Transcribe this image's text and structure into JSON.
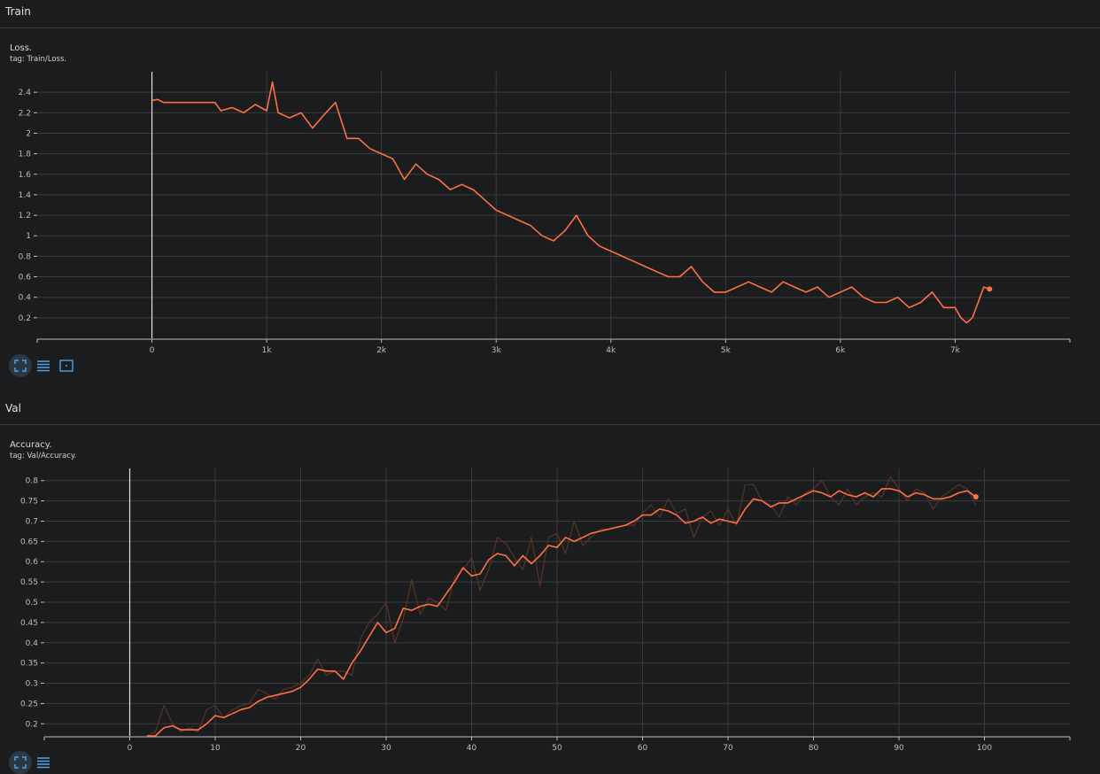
{
  "sections": [
    {
      "title": "Train"
    },
    {
      "title": "Val"
    }
  ],
  "cards": [
    {
      "title": "Loss.",
      "tag": "tag: Train/Loss."
    },
    {
      "title": "Accuracy.",
      "tag": "tag: Val/Accuracy."
    }
  ],
  "toolbar_icons": [
    "fit-domain-icon",
    "toggle-log-scale-icon",
    "expand-chart-icon"
  ],
  "colors": {
    "background": "#1b1c1e",
    "grid": "#3a3b3e",
    "smoothed": "#ff7043",
    "raw": "#5a3322",
    "axis": "#bdbdbd"
  },
  "chart_data": [
    {
      "type": "line",
      "title": "Loss.",
      "xlabel": "",
      "ylabel": "",
      "xlim": [
        -1000,
        8000
      ],
      "ylim": [
        0.0,
        2.6
      ],
      "x_ticks": [
        0,
        1000,
        2000,
        3000,
        4000,
        5000,
        6000,
        7000
      ],
      "x_tick_labels": [
        "0",
        "1k",
        "2k",
        "3k",
        "4k",
        "5k",
        "6k",
        "7k"
      ],
      "y_ticks": [
        0.2,
        0.4,
        0.6,
        0.8,
        1.0,
        1.2,
        1.4,
        1.6,
        1.8,
        2.0,
        2.2,
        2.4
      ],
      "y_tick_labels": [
        "0.2",
        "0.4",
        "0.6",
        "0.8",
        "1",
        "1.2",
        "1.4",
        "1.6",
        "1.8",
        "2",
        "2.2",
        "2.4"
      ],
      "grid": true,
      "series": [
        {
          "role": "smoothed",
          "x": [
            0,
            50,
            100,
            300,
            550,
            600,
            700,
            800,
            900,
            1000,
            1050,
            1100,
            1200,
            1300,
            1400,
            1500,
            1600,
            1700,
            1800,
            1900,
            2000,
            2100,
            2200,
            2300,
            2400,
            2500,
            2600,
            2700,
            2800,
            2900,
            3000,
            3100,
            3200,
            3300,
            3400,
            3500,
            3600,
            3700,
            3800,
            3900,
            4000,
            4100,
            4200,
            4300,
            4400,
            4500,
            4600,
            4700,
            4800,
            4900,
            5000,
            5100,
            5200,
            5300,
            5400,
            5500,
            5600,
            5700,
            5800,
            5900,
            6000,
            6100,
            6200,
            6300,
            6400,
            6500,
            6600,
            6700,
            6800,
            6900,
            7000,
            7050,
            7100,
            7150,
            7200,
            7250,
            7300
          ],
          "y": [
            2.32,
            2.33,
            2.3,
            2.3,
            2.3,
            2.22,
            2.25,
            2.2,
            2.28,
            2.22,
            2.5,
            2.2,
            2.15,
            2.2,
            2.05,
            2.18,
            2.3,
            1.95,
            1.95,
            1.85,
            1.8,
            1.75,
            1.55,
            1.7,
            1.6,
            1.55,
            1.45,
            1.5,
            1.45,
            1.35,
            1.25,
            1.2,
            1.15,
            1.1,
            1.0,
            0.95,
            1.05,
            1.2,
            1.0,
            0.9,
            0.85,
            0.8,
            0.75,
            0.7,
            0.65,
            0.6,
            0.6,
            0.7,
            0.55,
            0.45,
            0.45,
            0.5,
            0.55,
            0.5,
            0.45,
            0.55,
            0.5,
            0.45,
            0.5,
            0.4,
            0.45,
            0.5,
            0.4,
            0.35,
            0.35,
            0.4,
            0.3,
            0.35,
            0.45,
            0.3,
            0.3,
            0.2,
            0.15,
            0.2,
            0.35,
            0.5,
            0.48
          ]
        }
      ]
    },
    {
      "type": "line",
      "title": "Accuracy.",
      "xlabel": "",
      "ylabel": "",
      "xlim": [
        -10,
        110
      ],
      "ylim": [
        0.17,
        0.83
      ],
      "x_ticks": [
        0,
        10,
        20,
        30,
        40,
        50,
        60,
        70,
        80,
        90,
        100
      ],
      "x_tick_labels": [
        "0",
        "10",
        "20",
        "30",
        "40",
        "50",
        "60",
        "70",
        "80",
        "90",
        "100"
      ],
      "y_ticks": [
        0.2,
        0.25,
        0.3,
        0.35,
        0.4,
        0.45,
        0.5,
        0.55,
        0.6,
        0.65,
        0.7,
        0.75,
        0.8
      ],
      "y_tick_labels": [
        "0.2",
        "0.25",
        "0.3",
        "0.35",
        "0.4",
        "0.45",
        "0.5",
        "0.55",
        "0.6",
        "0.65",
        "0.7",
        "0.75",
        "0.8"
      ],
      "grid": true,
      "series": [
        {
          "role": "raw",
          "x": [
            2,
            3,
            4,
            5,
            6,
            7,
            8,
            9,
            10,
            11,
            12,
            13,
            14,
            15,
            16,
            17,
            18,
            19,
            20,
            21,
            22,
            23,
            24,
            25,
            26,
            27,
            28,
            29,
            30,
            31,
            32,
            33,
            34,
            35,
            36,
            37,
            38,
            39,
            40,
            41,
            42,
            43,
            44,
            45,
            46,
            47,
            48,
            49,
            50,
            51,
            52,
            53,
            54,
            55,
            56,
            57,
            58,
            59,
            60,
            61,
            62,
            63,
            64,
            65,
            66,
            67,
            68,
            69,
            70,
            71,
            72,
            73,
            74,
            75,
            76,
            77,
            78,
            79,
            80,
            81,
            82,
            83,
            84,
            85,
            86,
            87,
            88,
            89,
            90,
            91,
            92,
            93,
            94,
            95,
            96,
            97,
            98,
            99
          ],
          "y": [
            0.17,
            0.18,
            0.245,
            0.2,
            0.18,
            0.19,
            0.18,
            0.235,
            0.245,
            0.215,
            0.235,
            0.245,
            0.25,
            0.285,
            0.275,
            0.26,
            0.285,
            0.29,
            0.3,
            0.32,
            0.36,
            0.32,
            0.33,
            0.33,
            0.32,
            0.41,
            0.45,
            0.47,
            0.5,
            0.4,
            0.46,
            0.555,
            0.47,
            0.51,
            0.5,
            0.48,
            0.56,
            0.58,
            0.61,
            0.53,
            0.58,
            0.66,
            0.645,
            0.61,
            0.58,
            0.66,
            0.54,
            0.66,
            0.67,
            0.62,
            0.7,
            0.64,
            0.66,
            0.68,
            0.68,
            0.685,
            0.69,
            0.69,
            0.72,
            0.74,
            0.71,
            0.755,
            0.72,
            0.73,
            0.66,
            0.71,
            0.725,
            0.69,
            0.73,
            0.69,
            0.79,
            0.79,
            0.75,
            0.74,
            0.71,
            0.76,
            0.74,
            0.77,
            0.78,
            0.8,
            0.76,
            0.74,
            0.78,
            0.74,
            0.76,
            0.77,
            0.76,
            0.81,
            0.78,
            0.75,
            0.78,
            0.77,
            0.73,
            0.76,
            0.775,
            0.79,
            0.78,
            0.74
          ]
        },
        {
          "role": "smoothed",
          "x": [
            2,
            3,
            4,
            5,
            6,
            7,
            8,
            9,
            10,
            11,
            12,
            13,
            14,
            15,
            16,
            17,
            18,
            19,
            20,
            21,
            22,
            23,
            24,
            25,
            26,
            27,
            28,
            29,
            30,
            31,
            32,
            33,
            34,
            35,
            36,
            37,
            38,
            39,
            40,
            41,
            42,
            43,
            44,
            45,
            46,
            47,
            48,
            49,
            50,
            51,
            52,
            53,
            54,
            55,
            56,
            57,
            58,
            59,
            60,
            61,
            62,
            63,
            64,
            65,
            66,
            67,
            68,
            69,
            70,
            71,
            72,
            73,
            74,
            75,
            76,
            77,
            78,
            79,
            80,
            81,
            82,
            83,
            84,
            85,
            86,
            87,
            88,
            89,
            90,
            91,
            92,
            93,
            94,
            95,
            96,
            97,
            98,
            99
          ],
          "y": [
            0.155,
            0.17,
            0.19,
            0.195,
            0.185,
            0.185,
            0.185,
            0.2,
            0.22,
            0.215,
            0.225,
            0.235,
            0.24,
            0.255,
            0.265,
            0.27,
            0.275,
            0.28,
            0.29,
            0.31,
            0.335,
            0.33,
            0.33,
            0.31,
            0.35,
            0.38,
            0.415,
            0.45,
            0.425,
            0.435,
            0.485,
            0.48,
            0.49,
            0.495,
            0.49,
            0.52,
            0.55,
            0.585,
            0.565,
            0.57,
            0.605,
            0.62,
            0.615,
            0.59,
            0.615,
            0.595,
            0.615,
            0.64,
            0.635,
            0.66,
            0.65,
            0.66,
            0.67,
            0.675,
            0.68,
            0.685,
            0.69,
            0.7,
            0.715,
            0.715,
            0.73,
            0.725,
            0.715,
            0.695,
            0.7,
            0.71,
            0.695,
            0.705,
            0.7,
            0.695,
            0.73,
            0.755,
            0.75,
            0.735,
            0.745,
            0.745,
            0.755,
            0.765,
            0.775,
            0.77,
            0.76,
            0.775,
            0.765,
            0.76,
            0.77,
            0.76,
            0.78,
            0.78,
            0.775,
            0.76,
            0.77,
            0.765,
            0.755,
            0.755,
            0.76,
            0.77,
            0.775,
            0.76
          ]
        }
      ]
    }
  ]
}
